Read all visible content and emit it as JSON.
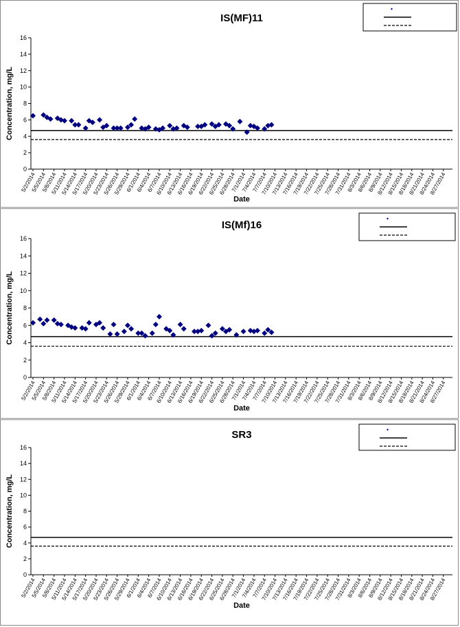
{
  "chart_data": [
    {
      "type": "scatter",
      "title": "IS(MF)11",
      "xlabel": "Date",
      "ylabel": "Concentration, mg/L",
      "ylim": [
        0,
        16
      ],
      "yticks": [
        0,
        2,
        4,
        6,
        8,
        10,
        12,
        14,
        16
      ],
      "x_tick_labels": [
        "5/2/2014",
        "5/5/2014",
        "5/8/2014",
        "5/11/2014",
        "5/14/2014",
        "5/17/2014",
        "5/20/2014",
        "5/23/2014",
        "5/26/2014",
        "5/29/2014",
        "6/1/2014",
        "6/4/2014",
        "6/7/2014",
        "6/10/2014",
        "6/13/2014",
        "6/16/2014",
        "6/19/2014",
        "6/22/2014",
        "6/25/2014",
        "6/28/2014",
        "7/1/2014",
        "7/4/2014",
        "7/7/2014",
        "7/10/2014",
        "7/13/2014",
        "7/16/2014",
        "7/19/2014",
        "7/22/2014",
        "7/25/2014",
        "7/28/2014",
        "7/31/2014",
        "8/3/2014",
        "8/6/2014",
        "8/9/2014",
        "8/12/2014",
        "8/15/2014",
        "8/18/2014",
        "8/21/2014",
        "8/24/2014",
        "8/27/2014"
      ],
      "grid": false,
      "legend_position": "top-right",
      "reference_lines": [
        4.7,
        3.6
      ],
      "series": [
        {
          "marker": "diamond",
          "color": "#000080",
          "points": [
            [
              "5/2/2014",
              6.5
            ],
            [
              "5/5/2014",
              6.6
            ],
            [
              "5/6/2014",
              6.3
            ],
            [
              "5/7/2014",
              6.1
            ],
            [
              "5/9/2014",
              6.2
            ],
            [
              "5/10/2014",
              6.0
            ],
            [
              "5/11/2014",
              5.9
            ],
            [
              "5/13/2014",
              5.9
            ],
            [
              "5/14/2014",
              5.4
            ],
            [
              "5/15/2014",
              5.4
            ],
            [
              "5/17/2014",
              5.0
            ],
            [
              "5/18/2014",
              5.9
            ],
            [
              "5/19/2014",
              5.7
            ],
            [
              "5/21/2014",
              6.0
            ],
            [
              "5/22/2014",
              5.1
            ],
            [
              "5/23/2014",
              5.3
            ],
            [
              "5/25/2014",
              5.0
            ],
            [
              "5/26/2014",
              5.0
            ],
            [
              "5/27/2014",
              5.0
            ],
            [
              "5/29/2014",
              5.1
            ],
            [
              "5/30/2014",
              5.4
            ],
            [
              "5/31/2014",
              6.1
            ],
            [
              "6/2/2014",
              5.0
            ],
            [
              "6/3/2014",
              4.9
            ],
            [
              "6/4/2014",
              5.1
            ],
            [
              "6/6/2014",
              4.9
            ],
            [
              "6/7/2014",
              4.8
            ],
            [
              "6/8/2014",
              5.0
            ],
            [
              "6/10/2014",
              5.3
            ],
            [
              "6/11/2014",
              4.9
            ],
            [
              "6/12/2014",
              5.0
            ],
            [
              "6/14/2014",
              5.3
            ],
            [
              "6/15/2014",
              5.1
            ],
            [
              "6/18/2014",
              5.2
            ],
            [
              "6/19/2014",
              5.2
            ],
            [
              "6/20/2014",
              5.4
            ],
            [
              "6/22/2014",
              5.5
            ],
            [
              "6/23/2014",
              5.2
            ],
            [
              "6/24/2014",
              5.4
            ],
            [
              "6/26/2014",
              5.5
            ],
            [
              "6/27/2014",
              5.3
            ],
            [
              "6/28/2014",
              4.9
            ],
            [
              "6/30/2014",
              5.8
            ],
            [
              "7/2/2014",
              4.5
            ],
            [
              "7/3/2014",
              5.3
            ],
            [
              "7/4/2014",
              5.2
            ],
            [
              "7/5/2014",
              5.0
            ],
            [
              "7/7/2014",
              4.9
            ],
            [
              "7/8/2014",
              5.3
            ],
            [
              "7/9/2014",
              5.4
            ]
          ]
        }
      ]
    },
    {
      "type": "scatter",
      "title": "IS(Mf)16",
      "xlabel": "Date",
      "ylabel": "Concentration, mg/L",
      "ylim": [
        0,
        16
      ],
      "yticks": [
        0,
        2,
        4,
        6,
        8,
        10,
        12,
        14,
        16
      ],
      "x_tick_labels": [
        "5/2/2014",
        "5/5/2014",
        "5/8/2014",
        "5/11/2014",
        "5/14/2014",
        "5/17/2014",
        "5/20/2014",
        "5/23/2014",
        "5/26/2014",
        "5/29/2014",
        "6/1/2014",
        "6/4/2014",
        "6/7/2014",
        "6/10/2014",
        "6/13/2014",
        "6/16/2014",
        "6/19/2014",
        "6/22/2014",
        "6/25/2014",
        "6/28/2014",
        "7/1/2014",
        "7/4/2014",
        "7/7/2014",
        "7/10/2014",
        "7/13/2014",
        "7/16/2014",
        "7/19/2014",
        "7/22/2014",
        "7/25/2014",
        "7/28/2014",
        "7/31/2014",
        "8/3/2014",
        "8/6/2014",
        "8/9/2014",
        "8/12/2014",
        "8/15/2014",
        "8/18/2014",
        "8/21/2014",
        "8/24/2014",
        "8/27/2014"
      ],
      "grid": false,
      "legend_position": "top-right",
      "reference_lines": [
        4.7,
        3.6
      ],
      "series": [
        {
          "marker": "diamond",
          "color": "#000080",
          "points": [
            [
              "5/2/2014",
              6.3
            ],
            [
              "5/4/2014",
              6.7
            ],
            [
              "5/5/2014",
              6.2
            ],
            [
              "5/6/2014",
              6.6
            ],
            [
              "5/8/2014",
              6.6
            ],
            [
              "5/9/2014",
              6.2
            ],
            [
              "5/10/2014",
              6.1
            ],
            [
              "5/12/2014",
              6.0
            ],
            [
              "5/13/2014",
              5.8
            ],
            [
              "5/14/2014",
              5.7
            ],
            [
              "5/16/2014",
              5.7
            ],
            [
              "5/17/2014",
              5.6
            ],
            [
              "5/18/2014",
              6.3
            ],
            [
              "5/20/2014",
              6.1
            ],
            [
              "5/21/2014",
              6.3
            ],
            [
              "5/22/2014",
              5.7
            ],
            [
              "5/24/2014",
              5.0
            ],
            [
              "5/25/2014",
              6.1
            ],
            [
              "5/26/2014",
              5.0
            ],
            [
              "5/28/2014",
              5.3
            ],
            [
              "5/29/2014",
              6.0
            ],
            [
              "5/30/2014",
              5.6
            ],
            [
              "6/1/2014",
              5.1
            ],
            [
              "6/2/2014",
              5.1
            ],
            [
              "6/3/2014",
              4.8
            ],
            [
              "6/5/2014",
              5.1
            ],
            [
              "6/6/2014",
              6.1
            ],
            [
              "6/7/2014",
              7.0
            ],
            [
              "6/9/2014",
              5.6
            ],
            [
              "6/10/2014",
              5.4
            ],
            [
              "6/11/2014",
              4.9
            ],
            [
              "6/13/2014",
              6.1
            ],
            [
              "6/14/2014",
              5.6
            ],
            [
              "6/17/2014",
              5.3
            ],
            [
              "6/18/2014",
              5.3
            ],
            [
              "6/19/2014",
              5.4
            ],
            [
              "6/21/2014",
              6.0
            ],
            [
              "6/22/2014",
              4.8
            ],
            [
              "6/23/2014",
              5.1
            ],
            [
              "6/25/2014",
              5.6
            ],
            [
              "6/26/2014",
              5.3
            ],
            [
              "6/27/2014",
              5.5
            ],
            [
              "6/29/2014",
              4.9
            ],
            [
              "7/1/2014",
              5.3
            ],
            [
              "7/3/2014",
              5.4
            ],
            [
              "7/4/2014",
              5.3
            ],
            [
              "7/5/2014",
              5.4
            ],
            [
              "7/7/2014",
              5.1
            ],
            [
              "7/8/2014",
              5.5
            ],
            [
              "7/9/2014",
              5.2
            ]
          ]
        }
      ]
    },
    {
      "type": "scatter",
      "title": "SR3",
      "xlabel": "Date",
      "ylabel": "Concentration, mg/L",
      "ylim": [
        0,
        16
      ],
      "yticks": [
        0,
        2,
        4,
        6,
        8,
        10,
        12,
        14,
        16
      ],
      "x_tick_labels": [
        "5/2/2014",
        "5/5/2014",
        "5/8/2014",
        "5/11/2014",
        "5/14/2014",
        "5/17/2014",
        "5/20/2014",
        "5/23/2014",
        "5/26/2014",
        "5/29/2014",
        "6/1/2014",
        "6/4/2014",
        "6/7/2014",
        "6/10/2014",
        "6/13/2014",
        "6/16/2014",
        "6/19/2014",
        "6/22/2014",
        "6/25/2014",
        "6/28/2014",
        "7/1/2014",
        "7/4/2014",
        "7/7/2014",
        "7/10/2014",
        "7/13/2014",
        "7/16/2014",
        "7/19/2014",
        "7/22/2014",
        "7/25/2014",
        "7/28/2014",
        "7/31/2014",
        "8/3/2014",
        "8/6/2014",
        "8/9/2014",
        "8/12/2014",
        "8/15/2014",
        "8/18/2014",
        "8/21/2014",
        "8/24/2014",
        "8/27/2014"
      ],
      "grid": false,
      "legend_position": "top-right",
      "reference_lines": [
        4.7,
        3.6
      ],
      "series": [
        {
          "marker": "diamond",
          "color": "#000080",
          "points": []
        }
      ]
    }
  ]
}
